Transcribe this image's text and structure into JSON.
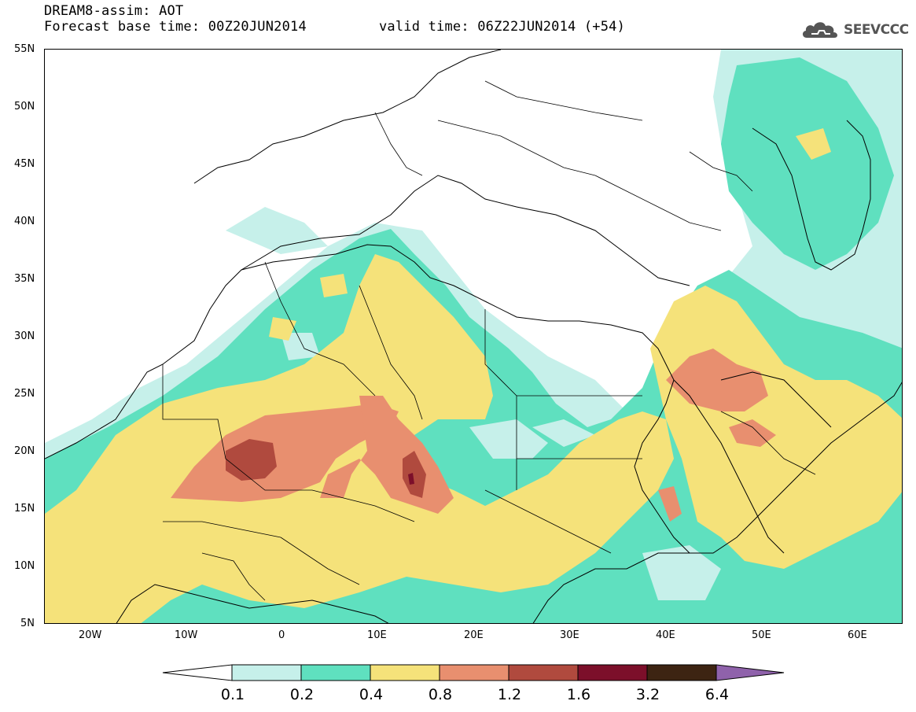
{
  "header": {
    "title_line1": "DREAM8-assim: AOT",
    "title_line2": "Forecast base time: 00Z20JUN2014",
    "valid_time": "valid time: 06Z22JUN2014 (+54)",
    "logo_text": "SEEVCCC",
    "logo_icon": "cloud-icon"
  },
  "map": {
    "lat_labels": [
      "55N",
      "50N",
      "45N",
      "40N",
      "35N",
      "30N",
      "25N",
      "20N",
      "15N",
      "10N",
      "5N"
    ],
    "lon_labels": [
      "20W",
      "10W",
      "0",
      "10E",
      "20E",
      "30E",
      "40E",
      "50E",
      "60E"
    ],
    "colorbar_labels": [
      "0.1",
      "0.2",
      "0.4",
      "0.8",
      "1.2",
      "1.6",
      "3.2",
      "6.4"
    ],
    "colors": {
      "c01": "#c6f0ea",
      "c02": "#5fe0bf",
      "c04": "#f5e27a",
      "c08": "#e88f6f",
      "c12": "#b04a3e",
      "c16": "#7c0f2a",
      "c32": "#3d2412",
      "c64": "#8f62ab",
      "land_border": "#000000",
      "outside": "#ffffff"
    }
  }
}
